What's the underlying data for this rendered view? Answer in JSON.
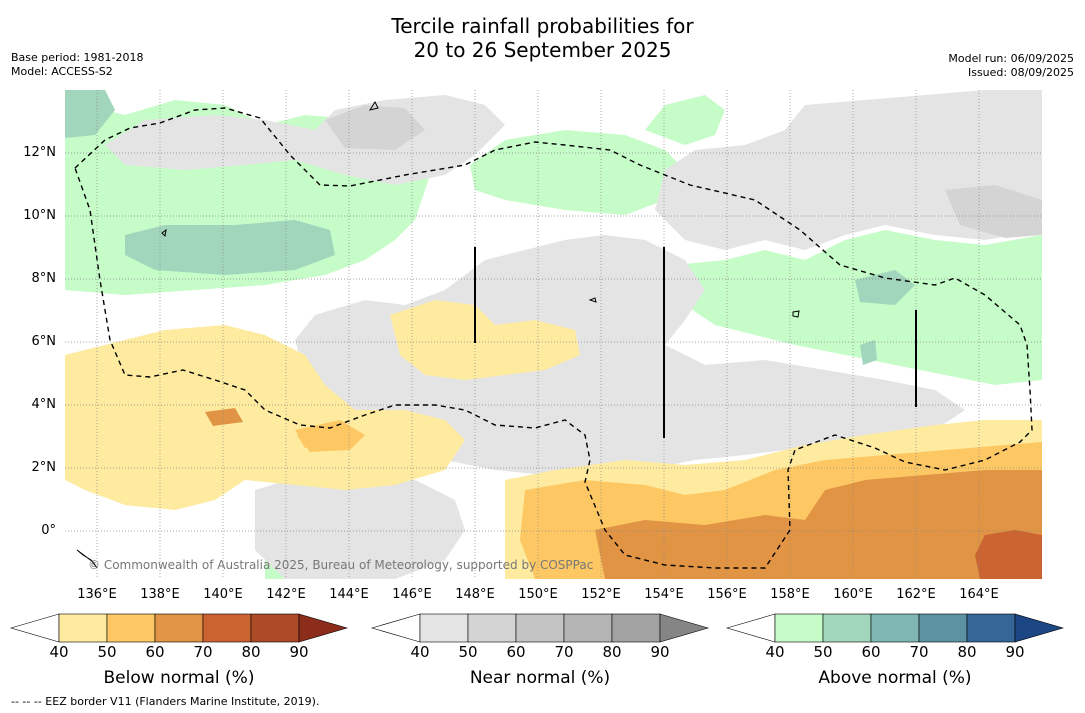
{
  "title_line1": "Tercile rainfall probabilities for",
  "title_line2": "20 to 26 September 2025",
  "base_period": "Base period: 1981-2018",
  "model": "Model: ACCESS-S2",
  "model_run": "Model run: 06/09/2025",
  "issued": "Issued: 08/09/2025",
  "lon_labels": [
    "136°E",
    "138°E",
    "140°E",
    "142°E",
    "144°E",
    "146°E",
    "148°E",
    "150°E",
    "152°E",
    "154°E",
    "156°E",
    "158°E",
    "160°E",
    "162°E",
    "164°E"
  ],
  "lat_labels": [
    "12°N",
    "10°N",
    "8°N",
    "6°N",
    "4°N",
    "2°N",
    "0°"
  ],
  "copyright": "© Commonwealth of Australia 2025, Bureau of Meteorology, supported by COSPPac",
  "footnote": "--  --  -- EEZ border V11 (Flanders Marine Institute, 2019).",
  "colorbars": [
    {
      "title": "Below normal (%)",
      "ticks": [
        "40",
        "50",
        "60",
        "70",
        "80",
        "90"
      ],
      "colors": [
        "#ffffff",
        "#feeba0",
        "#fdc864",
        "#e09444",
        "#cc6432",
        "#ad4a28",
        "#8c2d1c"
      ]
    },
    {
      "title": "Near normal (%)",
      "ticks": [
        "40",
        "50",
        "60",
        "70",
        "80",
        "90"
      ],
      "colors": [
        "#ffffff",
        "#e4e4e4",
        "#d4d4d4",
        "#c4c4c4",
        "#b4b4b4",
        "#a2a2a2",
        "#858585"
      ]
    },
    {
      "title": "Above normal (%)",
      "ticks": [
        "40",
        "50",
        "60",
        "70",
        "80",
        "90"
      ],
      "colors": [
        "#ffffff",
        "#c6fcc8",
        "#a2d6bc",
        "#80b6b2",
        "#5c92a2",
        "#346698",
        "#1c4684"
      ]
    }
  ]
}
